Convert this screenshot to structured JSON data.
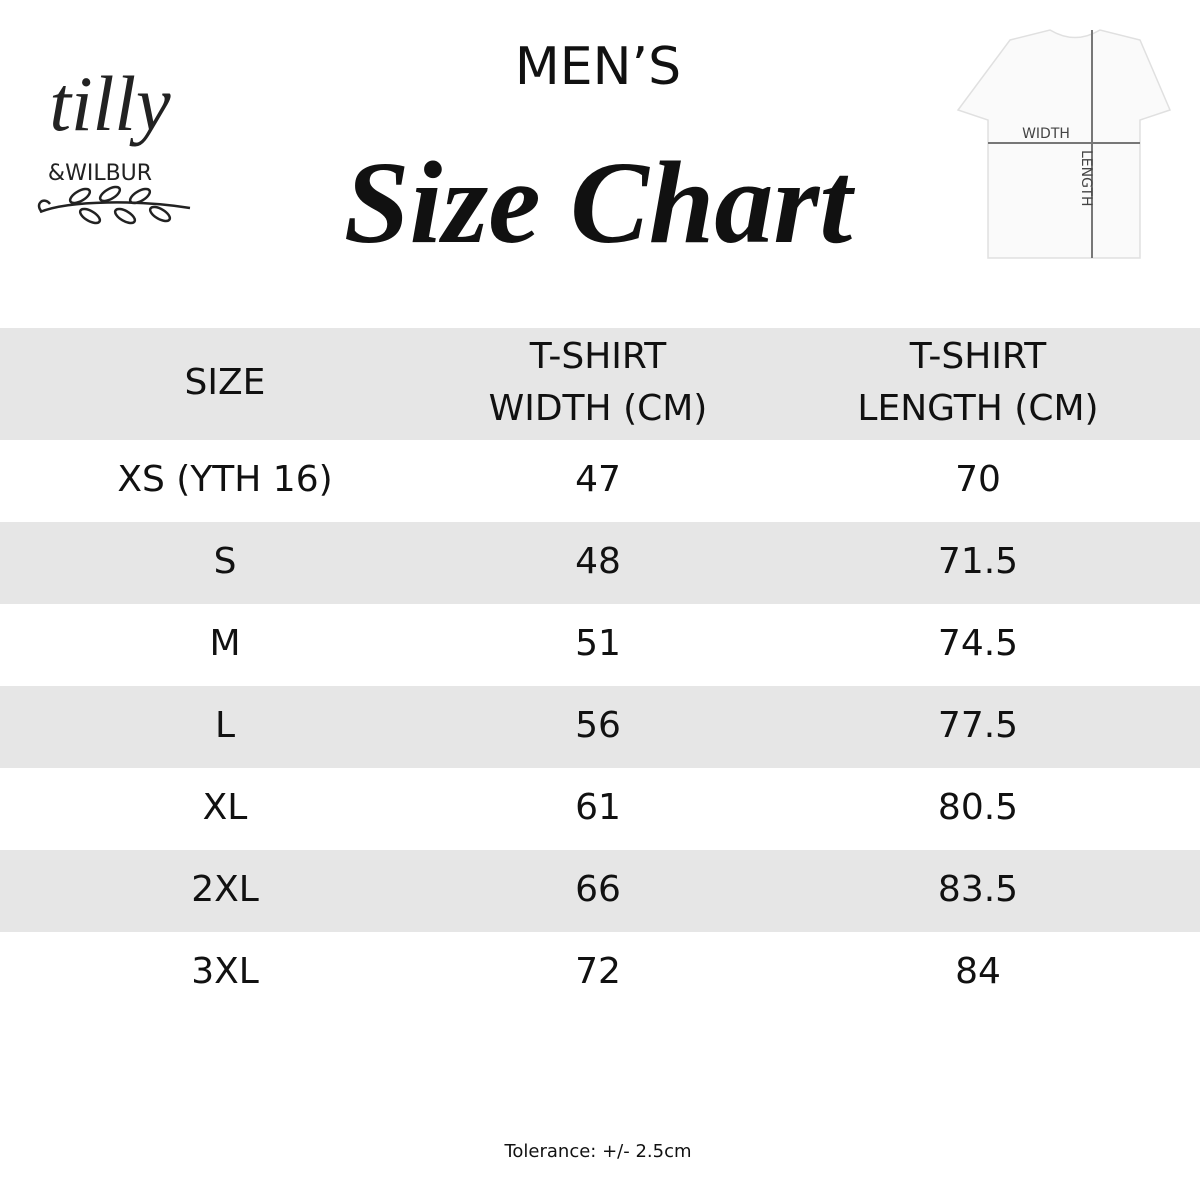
{
  "logo": {
    "name": "tilly",
    "sub": "&WILBUR"
  },
  "header": {
    "kicker": "MEN’S",
    "title": "Size Chart"
  },
  "diagram": {
    "width_label": "WIDTH",
    "length_label": "LENGTH"
  },
  "table": {
    "columns": [
      [
        "SIZE"
      ],
      [
        "T-SHIRT",
        "WIDTH (CM)"
      ],
      [
        "T-SHIRT",
        "LENGTH (CM)"
      ]
    ],
    "rows": [
      [
        "XS (YTH 16)",
        47,
        70
      ],
      [
        "S",
        48,
        71.5
      ],
      [
        "M",
        51,
        74.5
      ],
      [
        "L",
        56,
        77.5
      ],
      [
        "XL",
        61,
        80.5
      ],
      [
        "2XL",
        66,
        83.5
      ],
      [
        "3XL",
        72,
        84
      ]
    ]
  },
  "footer": {
    "note": "Tolerance: +/- 2.5cm"
  }
}
